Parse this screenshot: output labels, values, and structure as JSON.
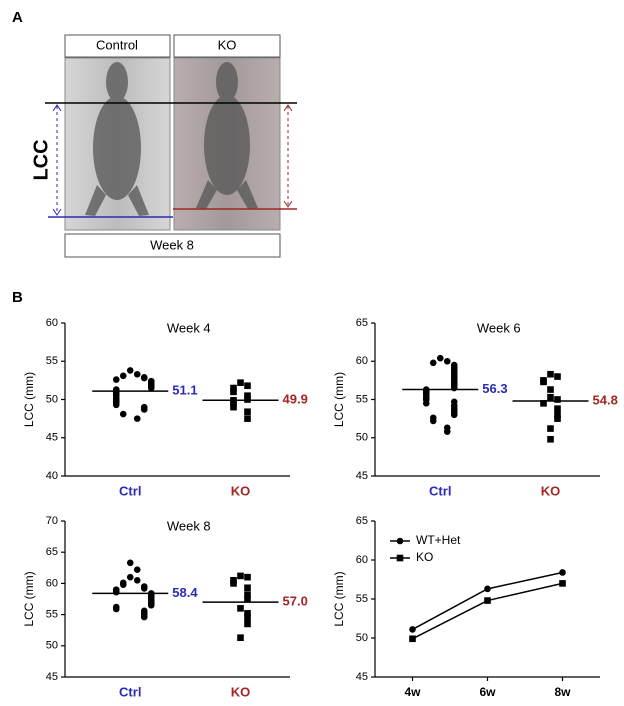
{
  "panel_a": {
    "label": "A",
    "columns": [
      "Control",
      "KO"
    ],
    "side_label": "LCC",
    "footer": "Week 8"
  },
  "panel_b": {
    "label": "B"
  },
  "chart_data": [
    {
      "type": "dotplot",
      "title": "Week 4",
      "ylabel": "LCC (mm)",
      "categories": [
        "Ctrl",
        "KO"
      ],
      "colors": [
        "#2b2bb8",
        "#a32626"
      ],
      "groups": [
        [
          53.8,
          53.3,
          53.1,
          52.9,
          52.8,
          52.6,
          52.4,
          52.3,
          52.1,
          51.9,
          51.7,
          51.5,
          51.3,
          51.1,
          50.9,
          50.7,
          50.5,
          50.2,
          50.0,
          49.8,
          49.6,
          49.3,
          49.0,
          48.7,
          48.1,
          47.5
        ],
        [
          52.2,
          51.8,
          51.5,
          51.0,
          50.5,
          50.0,
          49.9,
          49.5,
          49.0,
          48.4,
          47.5
        ]
      ],
      "means": [
        51.1,
        49.9
      ],
      "ylim": [
        40,
        60
      ],
      "yticks": [
        40,
        45,
        50,
        55,
        60
      ]
    },
    {
      "type": "dotplot",
      "title": "Week 6",
      "ylabel": "LCC (mm)",
      "categories": [
        "Ctrl",
        "KO"
      ],
      "colors": [
        "#2b2bb8",
        "#a32626"
      ],
      "groups": [
        [
          60.4,
          60.0,
          59.8,
          59.5,
          59.2,
          58.9,
          58.6,
          58.3,
          58.0,
          57.8,
          57.5,
          57.2,
          57.0,
          56.8,
          56.5,
          56.3,
          56.1,
          55.9,
          55.7,
          55.4,
          55.2,
          55.0,
          54.7,
          54.5,
          54.2,
          53.9,
          53.6,
          53.3,
          53.0,
          52.6,
          52.2,
          51.3,
          50.8
        ],
        [
          58.3,
          58.0,
          57.5,
          57.3,
          56.3,
          55.3,
          55.0,
          54.5,
          53.8,
          53.0,
          52.5,
          51.2,
          49.8
        ]
      ],
      "means": [
        56.3,
        54.8
      ],
      "ylim": [
        45,
        65
      ],
      "yticks": [
        45,
        50,
        55,
        60,
        65
      ]
    },
    {
      "type": "dotplot",
      "title": "Week 8",
      "ylabel": "LCC (mm)",
      "categories": [
        "Ctrl",
        "KO"
      ],
      "colors": [
        "#2b2bb8",
        "#a32626"
      ],
      "groups": [
        [
          63.3,
          62.2,
          61.0,
          60.5,
          60.1,
          59.8,
          59.5,
          59.2,
          59.0,
          58.8,
          58.6,
          58.4,
          58.2,
          58.0,
          57.8,
          57.6,
          57.4,
          57.2,
          57.0,
          56.8,
          56.5,
          56.2,
          55.9,
          55.6,
          55.3,
          55.0,
          54.6
        ],
        [
          61.2,
          61.0,
          60.5,
          60.0,
          59.3,
          58.2,
          57.5,
          56.0,
          55.2,
          54.5,
          53.5,
          51.3
        ]
      ],
      "means": [
        58.4,
        57
      ],
      "mean_labels": [
        "58.4",
        "57.0"
      ],
      "ylim": [
        45,
        70
      ],
      "yticks": [
        45,
        50,
        55,
        60,
        65,
        70
      ]
    },
    {
      "type": "line",
      "ylabel": "LCC (mm)",
      "categories": [
        "4w",
        "6w",
        "8w"
      ],
      "legend": "upper left",
      "series": [
        {
          "name": "WT+Het",
          "color": "#000000",
          "marker": "circle",
          "values": [
            51.1,
            56.3,
            58.4
          ]
        },
        {
          "name": "KO",
          "color": "#000000",
          "marker": "square",
          "values": [
            49.9,
            54.8,
            57
          ]
        }
      ],
      "ylim": [
        45,
        65
      ],
      "yticks": [
        45,
        50,
        55,
        60,
        65
      ]
    }
  ]
}
